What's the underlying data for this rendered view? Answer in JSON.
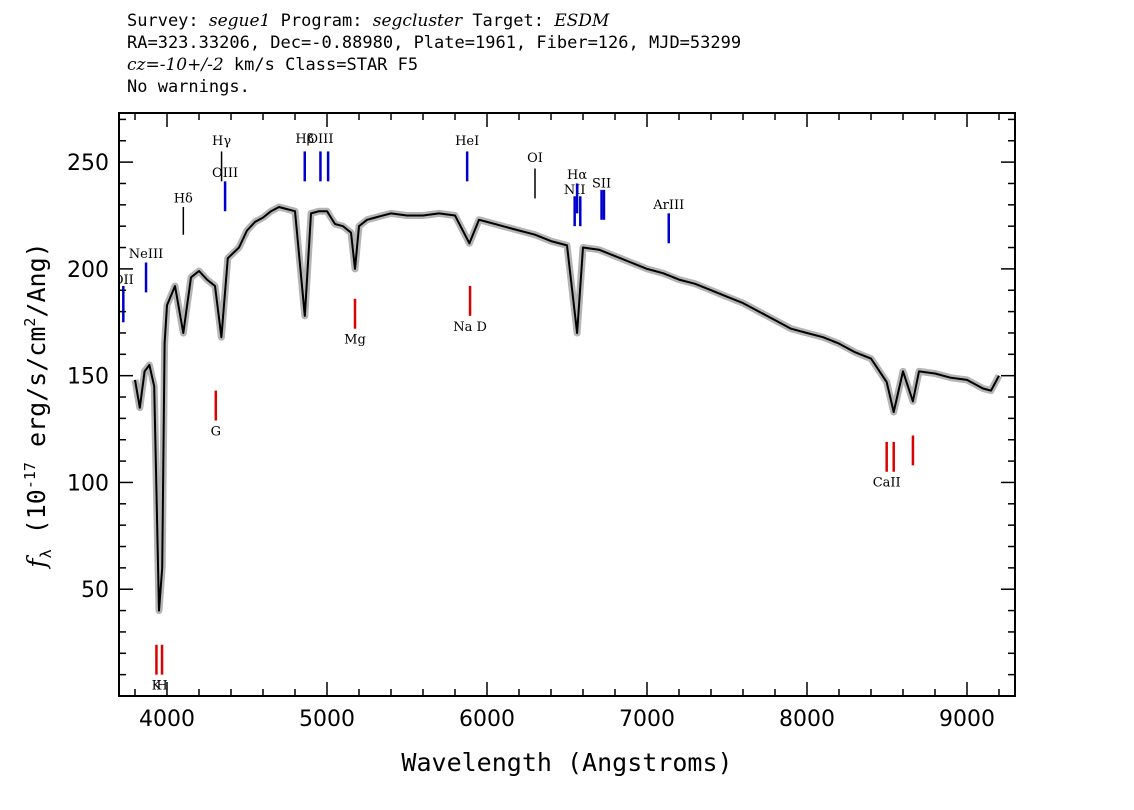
{
  "header": {
    "line1": {
      "survey_label": "Survey: ",
      "survey": "segue1",
      "program_label": " Program: ",
      "program": "segcluster",
      "target_label": " Target: ",
      "target": "ESDM"
    },
    "line2": "RA=323.33206, Dec=-0.88980, Plate=1961, Fiber=126, MJD=53299",
    "line3": {
      "cz_label": "cz=",
      "cz_value": "-10+/-2",
      "cz_unit": " km/s Class=STAR F5"
    },
    "line4": "No warnings."
  },
  "chart_data": {
    "type": "line",
    "xlabel": "Wavelength (Angstroms)",
    "ylabel": "f_λ (10^-17 erg/s/cm^2/Ang)",
    "ylabel_parts": {
      "f": "f",
      "sub": "λ",
      "a": " (10",
      "exp1": "-17",
      "b": " erg/s/cm",
      "exp2": "2",
      "c": "/Ang)"
    },
    "xlim": [
      3700,
      9300
    ],
    "ylim": [
      0,
      273
    ],
    "x_ticks": [
      4000,
      5000,
      6000,
      7000,
      8000,
      9000
    ],
    "x_tick_labels": [
      "4000",
      "5000",
      "6000",
      "7000",
      "8000",
      "9000"
    ],
    "y_ticks": [
      50,
      100,
      150,
      200,
      250
    ],
    "y_tick_labels": [
      "50",
      "100",
      "150",
      "200",
      "250"
    ],
    "series": [
      {
        "color": "#000000",
        "error_color": "#b4b4b4",
        "points": [
          [
            3800,
            148
          ],
          [
            3830,
            135
          ],
          [
            3860,
            152
          ],
          [
            3890,
            155
          ],
          [
            3920,
            145
          ],
          [
            3950,
            40
          ],
          [
            3970,
            60
          ],
          [
            3985,
            165
          ],
          [
            4000,
            183
          ],
          [
            4050,
            192
          ],
          [
            4102,
            170
          ],
          [
            4150,
            196
          ],
          [
            4200,
            199
          ],
          [
            4250,
            195
          ],
          [
            4300,
            192
          ],
          [
            4340,
            168
          ],
          [
            4380,
            205
          ],
          [
            4450,
            210
          ],
          [
            4500,
            218
          ],
          [
            4550,
            222
          ],
          [
            4600,
            224
          ],
          [
            4650,
            227
          ],
          [
            4700,
            229
          ],
          [
            4750,
            228
          ],
          [
            4800,
            227
          ],
          [
            4861,
            178
          ],
          [
            4900,
            226
          ],
          [
            4950,
            227
          ],
          [
            5000,
            227
          ],
          [
            5050,
            221
          ],
          [
            5100,
            220
          ],
          [
            5150,
            217
          ],
          [
            5175,
            200
          ],
          [
            5200,
            220
          ],
          [
            5250,
            223
          ],
          [
            5300,
            224
          ],
          [
            5400,
            226
          ],
          [
            5500,
            225
          ],
          [
            5600,
            225
          ],
          [
            5700,
            226
          ],
          [
            5800,
            225
          ],
          [
            5890,
            212
          ],
          [
            5950,
            223
          ],
          [
            6000,
            222
          ],
          [
            6100,
            220
          ],
          [
            6200,
            218
          ],
          [
            6300,
            216
          ],
          [
            6400,
            213
          ],
          [
            6500,
            211
          ],
          [
            6563,
            170
          ],
          [
            6600,
            210
          ],
          [
            6700,
            209
          ],
          [
            6800,
            206
          ],
          [
            6900,
            203
          ],
          [
            7000,
            200
          ],
          [
            7100,
            198
          ],
          [
            7200,
            195
          ],
          [
            7300,
            193
          ],
          [
            7400,
            190
          ],
          [
            7500,
            187
          ],
          [
            7600,
            184
          ],
          [
            7700,
            180
          ],
          [
            7800,
            176
          ],
          [
            7900,
            172
          ],
          [
            8000,
            170
          ],
          [
            8100,
            168
          ],
          [
            8200,
            165
          ],
          [
            8300,
            161
          ],
          [
            8400,
            158
          ],
          [
            8498,
            147
          ],
          [
            8542,
            133
          ],
          [
            8600,
            152
          ],
          [
            8662,
            138
          ],
          [
            8700,
            152
          ],
          [
            8800,
            151
          ],
          [
            8900,
            149
          ],
          [
            9000,
            148
          ],
          [
            9100,
            144
          ],
          [
            9150,
            143
          ],
          [
            9200,
            150
          ]
        ]
      }
    ],
    "lines": [
      {
        "label": "OII",
        "wave": 3727,
        "y1": 175,
        "y2": 192,
        "type": "emission",
        "label_y": 193
      },
      {
        "label": "NeIII",
        "wave": 3869,
        "y1": 189,
        "y2": 203,
        "type": "emission",
        "label_y": 205
      },
      {
        "label": "Hδ",
        "wave": 4102,
        "y1": 216,
        "y2": 229,
        "type": "sky",
        "label_y": 231
      },
      {
        "label": "Hγ",
        "wave": 4341,
        "y1": 241,
        "y2": 255,
        "type": "sky",
        "label_y": 258
      },
      {
        "label": "OIII",
        "wave": 4363,
        "y1": 227,
        "y2": 241,
        "type": "emission",
        "label_y": 243
      },
      {
        "label": "Hβ",
        "wave": 4861,
        "y1": 241,
        "y2": 255,
        "type": "emission",
        "label_y": 259
      },
      {
        "label": "OIII",
        "wave": 4959,
        "y1": 241,
        "y2": 255,
        "type": "emission",
        "label_y": 259
      },
      {
        "label": "OIII",
        "wave": 5007,
        "y1": 241,
        "y2": 255,
        "type": "emission",
        "label_y": 259
      },
      {
        "label": "HeI",
        "wave": 5876,
        "y1": 241,
        "y2": 255,
        "type": "emission",
        "label_y": 258
      },
      {
        "label": "OI",
        "wave": 6300,
        "y1": 233,
        "y2": 247,
        "type": "sky",
        "label_y": 250
      },
      {
        "label": "NII",
        "wave": 6548,
        "y1": 220,
        "y2": 234,
        "type": "emission",
        "label_y": 235
      },
      {
        "label": "Hα",
        "wave": 6563,
        "y1": 226,
        "y2": 240,
        "type": "emission",
        "label_y": 242
      },
      {
        "label": "NII",
        "wave": 6583,
        "y1": 220,
        "y2": 234,
        "type": "emission",
        "label_y": 235
      },
      {
        "label": "SII",
        "wave": 6716,
        "y1": 223,
        "y2": 237,
        "type": "emission",
        "label_y": 238
      },
      {
        "label": "SII",
        "wave": 6731,
        "y1": 223,
        "y2": 237,
        "type": "emission",
        "label_y": 238
      },
      {
        "label": "ArIII",
        "wave": 7136,
        "y1": 212,
        "y2": 226,
        "type": "emission",
        "label_y": 228
      },
      {
        "label": "Mg",
        "wave": 5175,
        "y1": 172,
        "y2": 186,
        "type": "absorption",
        "label_y": 165
      },
      {
        "label": "Na D",
        "wave": 5894,
        "y1": 178,
        "y2": 192,
        "type": "absorption",
        "label_y": 171
      },
      {
        "label": "G",
        "wave": 4305,
        "y1": 129,
        "y2": 143,
        "type": "absorption",
        "label_y": 122
      },
      {
        "label": "K",
        "wave": 3934,
        "y1": 10,
        "y2": 24,
        "type": "absorption",
        "label_y": 3
      },
      {
        "label": "H",
        "wave": 3969,
        "y1": 10,
        "y2": 24,
        "type": "absorption",
        "label_y": 3
      },
      {
        "label": "CaII",
        "wave": 8498,
        "y1": 105,
        "y2": 119,
        "type": "absorption",
        "label_y": 98
      },
      {
        "label": "CaII",
        "wave": 8542,
        "y1": 105,
        "y2": 119,
        "type": "absorption",
        "label_y": 98
      },
      {
        "label": "CaII",
        "wave": 8662,
        "y1": 108,
        "y2": 122,
        "type": "absorption",
        "label_y": 98
      }
    ],
    "line_colors": {
      "emission": "#0000cc",
      "absorption": "#dd0000",
      "sky": "#000000"
    }
  }
}
